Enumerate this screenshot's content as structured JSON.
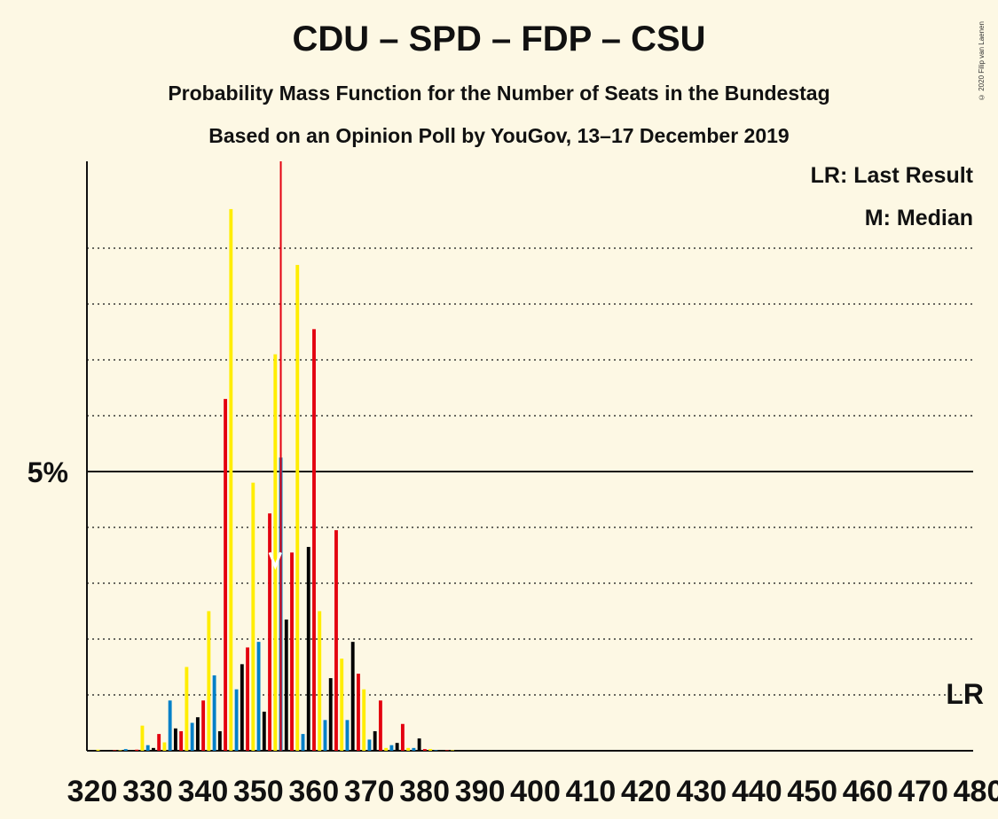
{
  "title": "CDU – SPD – FDP – CSU",
  "subtitle1": "Probability Mass Function for the Number of Seats in the Bundestag",
  "subtitle2": "Based on an Opinion Poll by YouGov, 13–17 December 2019",
  "copyright": "© 2020 Filip van Laenen",
  "legend": {
    "lr": "LR: Last Result",
    "m": "M: Median",
    "lr_marker": "LR"
  },
  "colors": {
    "background": "#fdf8e4",
    "cdu": "#000000",
    "spd": "#e3000f",
    "fdp": "#ffed00",
    "csu": "#0080c8",
    "median_line": "#e3000f"
  },
  "chart_data": {
    "type": "bar",
    "title": "CDU – SPD – FDP – CSU",
    "ylabel_tick": "5%",
    "ylim": [
      0,
      10.5
    ],
    "grid": true,
    "median": 355,
    "last_result": 480,
    "x_tick_labels": [
      "320",
      "330",
      "340",
      "350",
      "360",
      "370",
      "380",
      "390",
      "400",
      "410",
      "420",
      "430",
      "440",
      "450",
      "460",
      "470",
      "480"
    ],
    "color_cycle": [
      "#000000",
      "#e3000f",
      "#ffed00",
      "#0080c8"
    ],
    "x": [
      320,
      321,
      322,
      323,
      324,
      325,
      326,
      327,
      328,
      329,
      330,
      331,
      332,
      333,
      334,
      335,
      336,
      337,
      338,
      339,
      340,
      341,
      342,
      343,
      344,
      345,
      346,
      347,
      348,
      349,
      350,
      351,
      352,
      353,
      354,
      355,
      356,
      357,
      358,
      359,
      360,
      361,
      362,
      363,
      364,
      365,
      366,
      367,
      368,
      369,
      370,
      371,
      372,
      373,
      374,
      375,
      376,
      377,
      378,
      379,
      380,
      381,
      382,
      383,
      384,
      385,
      386,
      387,
      388,
      389,
      390,
      391,
      392,
      393,
      394,
      395,
      396,
      397,
      398,
      399,
      400
    ],
    "values": [
      0,
      0,
      0.02,
      0,
      0,
      0.01,
      0.01,
      0.03,
      0,
      0.02,
      0.45,
      0.1,
      0.05,
      0.3,
      0.15,
      0.9,
      0.4,
      0.35,
      1.5,
      0.5,
      0.6,
      0.9,
      2.5,
      1.35,
      0.35,
      6.3,
      9.7,
      1.1,
      1.55,
      1.85,
      4.8,
      1.95,
      0.7,
      4.25,
      7.1,
      5.25,
      2.35,
      3.55,
      8.7,
      0.3,
      3.65,
      7.55,
      2.5,
      0.55,
      1.3,
      3.95,
      1.65,
      0.55,
      1.95,
      1.38,
      1.1,
      0.2,
      0.35,
      0.9,
      0.05,
      0.1,
      0.14,
      0.48,
      0.05,
      0.05,
      0.22,
      0.03,
      0.03,
      0.01,
      0.01,
      0.01,
      0.01,
      0,
      0,
      0,
      0,
      0,
      0,
      0,
      0,
      0,
      0,
      0,
      0,
      0,
      0
    ]
  }
}
